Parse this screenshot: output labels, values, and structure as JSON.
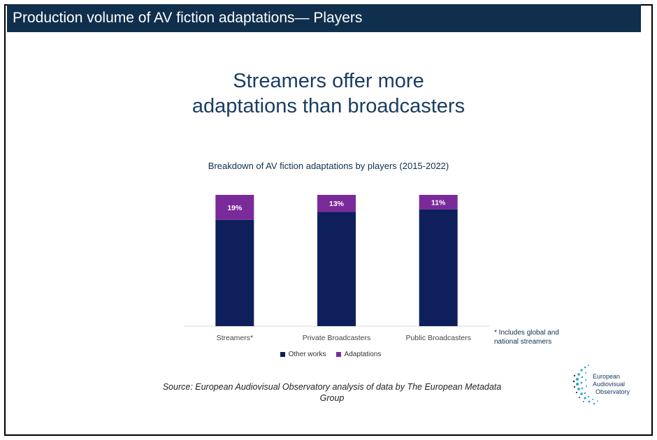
{
  "header": {
    "title": "Production volume of AV fiction adaptations— Players"
  },
  "headline": {
    "line1": "Streamers offer more",
    "line2": "adaptations than broadcasters"
  },
  "chart_data": {
    "type": "bar",
    "stacked": true,
    "normalized_percent": true,
    "title": "Breakdown of AV fiction adaptations by players (2015-2022)",
    "categories": [
      "Streamers*",
      "Private Broadcasters",
      "Public Broadcasters"
    ],
    "series": [
      {
        "name": "Other works",
        "values": [
          81,
          87,
          89
        ],
        "color": "#0e1f5b"
      },
      {
        "name": "Adaptations",
        "values": [
          19,
          13,
          11
        ],
        "color": "#7b2a9a",
        "labels": [
          "19%",
          "13%",
          "11%"
        ]
      }
    ],
    "ylim": [
      0,
      100
    ],
    "grid": false,
    "legend_position": "bottom"
  },
  "footnote": {
    "line1": "* Includes global and",
    "line2": "national streamers"
  },
  "source": {
    "line1": "Source: European Audiovisual Observatory analysis of data by The European Metadata",
    "line2": "Group"
  },
  "logo": {
    "line1": "European",
    "line2": "Audiovisual",
    "line3": "Observatory"
  },
  "colors": {
    "bar_header": "#0f2f4d",
    "headline": "#1b3d63"
  }
}
